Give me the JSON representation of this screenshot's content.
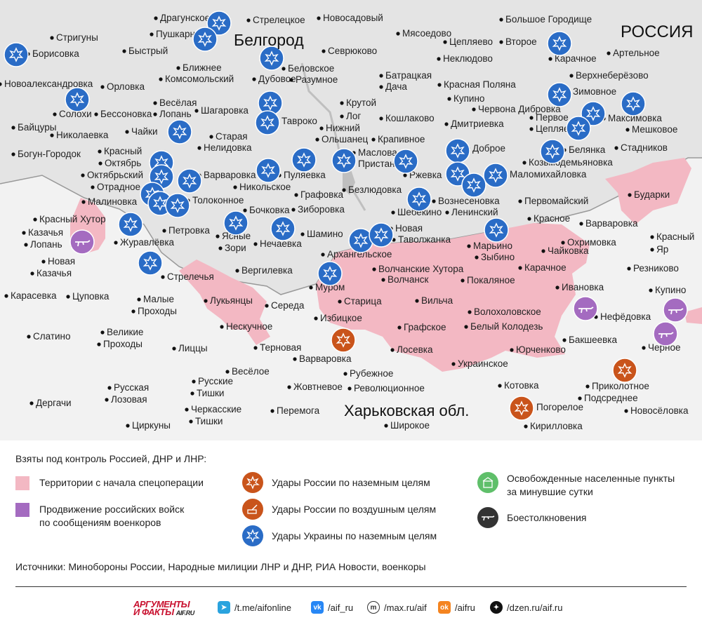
{
  "map": {
    "region_russia": "РОССИЯ",
    "region_kharkiv": "Харьковская обл.",
    "city_belgorod": "Белгород",
    "settlements": [
      [
        "Драгунское",
        228,
        30
      ],
      [
        "Стрелецкое",
        360,
        33
      ],
      [
        "Новосадовый",
        460,
        30
      ],
      [
        "Большое Городище",
        720,
        32
      ],
      [
        "Пушкарное",
        222,
        53
      ],
      [
        "Мясоедово",
        573,
        52
      ],
      [
        "Цепляево",
        640,
        64
      ],
      [
        "Второе",
        720,
        64
      ],
      [
        "Стригуны",
        80,
        58
      ],
      [
        "Борисовка",
        46,
        81
      ],
      [
        "Быстрый",
        183,
        77
      ],
      [
        "Севрюково",
        467,
        77
      ],
      [
        "Неклюдово",
        631,
        88
      ],
      [
        "Карачное",
        790,
        88
      ],
      [
        "Артельное",
        873,
        80
      ],
      [
        "Ближнее",
        260,
        101
      ],
      [
        "Комсомольский",
        235,
        117
      ],
      [
        "Дубовое",
        368,
        117
      ],
      [
        "Беловское",
        410,
        102
      ],
      [
        "Разумное",
        421,
        118
      ],
      [
        "Батрацкая",
        549,
        112
      ],
      [
        "Дача",
        549,
        128
      ],
      [
        "Верхнеберёзово",
        820,
        112
      ],
      [
        "Новоалександровка",
        6,
        124
      ],
      [
        "Орловка",
        152,
        128
      ],
      [
        "Красная Поляна",
        632,
        125
      ],
      [
        "Зимовное",
        816,
        135
      ],
      [
        "Солохи",
        84,
        167
      ],
      [
        "Бессоновка",
        143,
        167
      ],
      [
        "Весёлая",
        227,
        151
      ],
      [
        "Лопань",
        227,
        167
      ],
      [
        "Шагаровка",
        286,
        162
      ],
      [
        "Крутой",
        493,
        151
      ],
      [
        "Лог",
        493,
        170
      ],
      [
        "Купино",
        646,
        145
      ],
      [
        "Червона Дибровка",
        681,
        160
      ],
      [
        "Первое",
        763,
        172
      ],
      [
        "Цепляево",
        763,
        188
      ],
      [
        "Максимовка",
        866,
        173
      ],
      [
        "Мешковое",
        900,
        189
      ],
      [
        "Байцуры",
        25,
        186
      ],
      [
        "Чайки",
        187,
        192
      ],
      [
        "Тавроко",
        401,
        177
      ],
      [
        "Нижний",
        464,
        187
      ],
      [
        "Ольшанец",
        458,
        203
      ],
      [
        "Кошлаково",
        549,
        173
      ],
      [
        "Дмитриевка",
        642,
        181
      ],
      [
        "Николаевка",
        80,
        197
      ],
      [
        "Старая",
        307,
        199
      ],
      [
        "Нелидовка",
        290,
        215
      ],
      [
        "Крапивное",
        538,
        203
      ],
      [
        "Белянка",
        810,
        218
      ],
      [
        "Стадников",
        884,
        215
      ],
      [
        "Богун-Городок",
        25,
        224
      ],
      [
        "Красный",
        148,
        220
      ],
      [
        "Октябрь",
        149,
        237
      ],
      [
        "Маслова",
        510,
        222
      ],
      [
        "Пристань",
        510,
        238
      ],
      [
        "Доброе",
        673,
        216
      ],
      [
        "Козьмодемьяновка",
        753,
        236
      ],
      [
        "Октябрьский",
        124,
        254
      ],
      [
        "Варваровка",
        290,
        254
      ],
      [
        "Пуляевка",
        404,
        254
      ],
      [
        "Ржевка",
        583,
        254
      ],
      [
        "Маломихайловка",
        726,
        253
      ],
      [
        "Отрадное",
        138,
        271
      ],
      [
        "Никольское",
        341,
        271
      ],
      [
        "Графовка",
        428,
        282
      ],
      [
        "Безлюдовка",
        496,
        275
      ],
      [
        "Малиновка",
        125,
        292
      ],
      [
        "Толоконное",
        274,
        290
      ],
      [
        "Вознесеновка",
        624,
        291
      ],
      [
        "Первомайский",
        747,
        291
      ],
      [
        "Бударки",
        903,
        282
      ],
      [
        "Бочковка",
        355,
        304
      ],
      [
        "Зиборовка",
        424,
        303
      ],
      [
        "Шебекино",
        566,
        307
      ],
      [
        "Ленинский",
        643,
        307
      ],
      [
        "Красный Хутор",
        56,
        317
      ],
      [
        "Шамино",
        437,
        338
      ],
      [
        "Новая",
        563,
        330
      ],
      [
        "Таволжанка",
        567,
        346
      ],
      [
        "Красное",
        760,
        316
      ],
      [
        "Варваровка",
        834,
        323
      ],
      [
        "Казачья",
        40,
        336
      ],
      [
        "Лопань",
        43,
        353
      ],
      [
        "Журавлёвка",
        171,
        350
      ],
      [
        "Петровка",
        240,
        333
      ],
      [
        "Ясные",
        316,
        341
      ],
      [
        "Зори",
        320,
        358
      ],
      [
        "Нечаевка",
        370,
        352
      ],
      [
        "Архангельское",
        466,
        367
      ],
      [
        "Марьино",
        674,
        355
      ],
      [
        "Зыбино",
        685,
        371
      ],
      [
        "Охримовка",
        808,
        350
      ],
      [
        "Чайковка",
        780,
        362
      ],
      [
        "Красный",
        935,
        342
      ],
      [
        "Яр",
        935,
        360
      ],
      [
        "Новая",
        68,
        377
      ],
      [
        "Казачья",
        52,
        394
      ],
      [
        "Вергилевка",
        344,
        390
      ],
      [
        "Волчанские Хутора",
        539,
        388
      ],
      [
        "Карачное",
        747,
        386
      ],
      [
        "Резниково",
        902,
        387
      ],
      [
        "Стрелечья",
        238,
        399
      ],
      [
        "Волчанск",
        552,
        403
      ],
      [
        "Покаляное",
        665,
        404
      ],
      [
        "Муром",
        449,
        414
      ],
      [
        "Ивановка",
        800,
        414
      ],
      [
        "Купино",
        933,
        418
      ],
      [
        "Карасевка",
        15,
        426
      ],
      [
        "Цуповка",
        103,
        427
      ],
      [
        "Малые",
        204,
        431
      ],
      [
        "Проходы",
        196,
        448
      ],
      [
        "Лукьянцы",
        299,
        433
      ],
      [
        "Середа",
        386,
        440
      ],
      [
        "Старица",
        490,
        434
      ],
      [
        "Вильча",
        600,
        433
      ],
      [
        "Волохоловское",
        675,
        449
      ],
      [
        "Нефёдовка",
        855,
        456
      ],
      [
        "Избицкое",
        456,
        458
      ],
      [
        "Нескучное",
        322,
        470
      ],
      [
        "Графское",
        575,
        471
      ],
      [
        "Белый Колодезь",
        670,
        470
      ],
      [
        "Слатино",
        47,
        484
      ],
      [
        "Великие",
        152,
        478
      ],
      [
        "Проходы",
        147,
        495
      ],
      [
        "Бакшеевка",
        810,
        489
      ],
      [
        "Черное",
        923,
        500
      ],
      [
        "Терновая",
        370,
        500
      ],
      [
        "Лиццы",
        254,
        501
      ],
      [
        "Лосевка",
        565,
        503
      ],
      [
        "Юрченково",
        735,
        503
      ],
      [
        "Варваровка",
        426,
        516
      ],
      [
        "Украинское",
        652,
        523
      ],
      [
        "Весёлое",
        330,
        534
      ],
      [
        "Рубежное",
        498,
        537
      ],
      [
        "Русские",
        282,
        548
      ],
      [
        "Тишки",
        280,
        565
      ],
      [
        "Жовтневое",
        418,
        556
      ],
      [
        "Революционное",
        504,
        558
      ],
      [
        "Котовка",
        718,
        554
      ],
      [
        "Приколотное",
        843,
        555
      ],
      [
        "Подсреднее",
        832,
        572
      ],
      [
        "Русская",
        162,
        557
      ],
      [
        "Лозовая",
        158,
        574
      ],
      [
        "Дергачи",
        51,
        579
      ],
      [
        "Погорелое",
        764,
        585
      ],
      [
        "Черкасские",
        272,
        588
      ],
      [
        "Тишки",
        278,
        605
      ],
      [
        "Перемога",
        394,
        590
      ],
      [
        "Новосёловка",
        898,
        590
      ],
      [
        "Циркуны",
        188,
        611
      ],
      [
        "Широкое",
        556,
        611
      ],
      [
        "Кирилловка",
        755,
        612
      ]
    ],
    "strike_ukraine": [
      [
        23,
        78
      ],
      [
        312,
        33
      ],
      [
        292,
        56
      ],
      [
        797,
        62
      ],
      [
        110,
        142
      ],
      [
        387,
        83
      ],
      [
        385,
        147
      ],
      [
        381,
        175
      ],
      [
        797,
        135
      ],
      [
        902,
        148
      ],
      [
        845,
        162
      ],
      [
        824,
        183
      ],
      [
        256,
        188
      ],
      [
        652,
        215
      ],
      [
        787,
        216
      ],
      [
        433,
        228
      ],
      [
        490,
        229
      ],
      [
        578,
        230
      ],
      [
        382,
        243
      ],
      [
        230,
        232
      ],
      [
        230,
        252
      ],
      [
        270,
        258
      ],
      [
        652,
        248
      ],
      [
        706,
        250
      ],
      [
        675,
        264
      ],
      [
        217,
        277
      ],
      [
        228,
        290
      ],
      [
        253,
        293
      ],
      [
        597,
        284
      ],
      [
        186,
        320
      ],
      [
        336,
        318
      ],
      [
        403,
        326
      ],
      [
        514,
        343
      ],
      [
        543,
        335
      ],
      [
        707,
        328
      ],
      [
        214,
        375
      ],
      [
        470,
        390
      ]
    ],
    "strike_russia_ground": [
      [
        489,
        485
      ],
      [
        890,
        528
      ],
      [
        743,
        582
      ]
    ],
    "combat": [
      [
        117,
        345
      ],
      [
        834,
        440
      ],
      [
        962,
        442
      ],
      [
        948,
        476
      ]
    ],
    "font_colors": {
      "strike_ukraine": "#2a6cc6",
      "strike_russia": "#c9541b",
      "combat": "#a46bc0",
      "controlled": "#f3b8c3"
    }
  },
  "legend": {
    "title": "Взяты под контроль Россией, ДНР и ЛНР:",
    "territory": "Территории с начала спецоперации",
    "advance_l1": "Продвижение российских войск",
    "advance_l2": "по сообщениям военкоров",
    "ru_ground": "Удары России по наземным целям",
    "ru_air": "Удары России по воздушным целям",
    "ua_ground": "Удары Украины по наземным целям",
    "liberated_l1": "Освобожденные населенные пункты",
    "liberated_l2": "за минувшие сутки",
    "clashes": "Боестолкновения",
    "sources": "Источники: Минобороны России, Народные милиции ЛНР и ДНР, РИА Новости, военкоры"
  },
  "footer": {
    "brand_l1": "АРГУМЕНТЫ",
    "brand_l2": "И ФАКТЫ",
    "brand_site": "AIF.RU",
    "telegram": "/t.me/aifonline",
    "vk": "/aif_ru",
    "max": "/max.ru/aif",
    "ok": "/aifru",
    "dzen": "/dzen.ru/aif.ru"
  }
}
